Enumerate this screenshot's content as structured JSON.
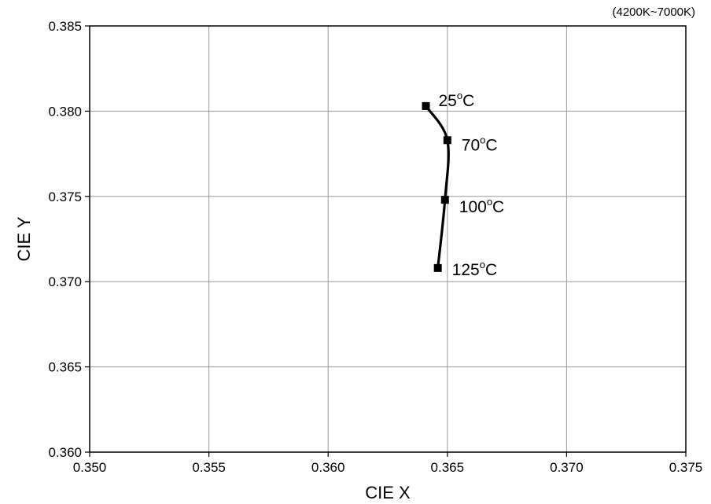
{
  "chart_data": {
    "type": "line",
    "note": "(4200K~7000K)",
    "xlabel": "CIE X",
    "ylabel": "CIE Y",
    "xlim": [
      0.35,
      0.375
    ],
    "ylim": [
      0.36,
      0.385
    ],
    "grid": true,
    "x_ticks": [
      "0.350",
      "0.355",
      "0.360",
      "0.365",
      "0.370",
      "0.375"
    ],
    "y_ticks": [
      "0.360",
      "0.365",
      "0.370",
      "0.375",
      "0.380",
      "0.385"
    ],
    "x_tick_values": [
      0.35,
      0.355,
      0.36,
      0.365,
      0.37,
      0.375
    ],
    "y_tick_values": [
      0.36,
      0.365,
      0.37,
      0.375,
      0.38,
      0.385
    ],
    "series": [
      {
        "points": [
          {
            "x": 0.3641,
            "y": 0.3803,
            "label_num": "25",
            "label_unit": "C"
          },
          {
            "x": 0.365,
            "y": 0.3783,
            "label_num": "70",
            "label_unit": "C"
          },
          {
            "x": 0.3649,
            "y": 0.3748,
            "label_num": "100",
            "label_unit": "C"
          },
          {
            "x": 0.3646,
            "y": 0.3708,
            "label_num": "125",
            "label_unit": "C"
          }
        ]
      }
    ],
    "degree_symbol": "o",
    "colors": {
      "line": "#000000",
      "grid": "#999999",
      "marker": "#000000"
    }
  }
}
